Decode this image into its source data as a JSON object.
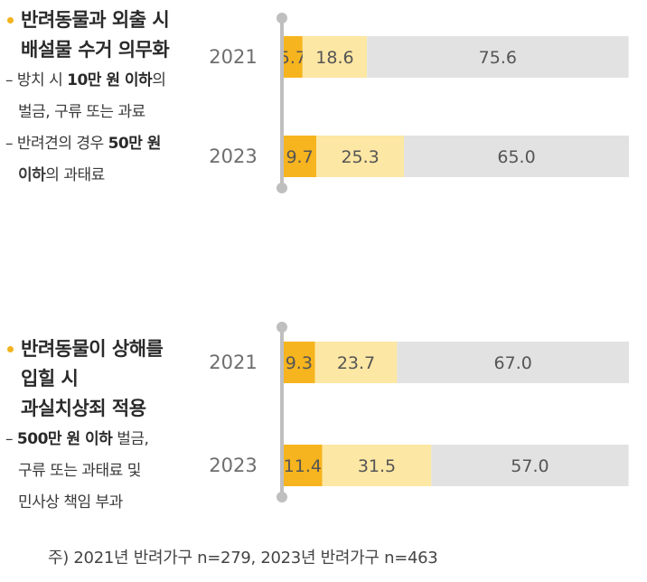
{
  "panels": [
    {
      "heading_lines": [
        "반려동물과 외출 시",
        "배설물 수거 의무화"
      ],
      "sub_lines": [
        {
          "dash": true,
          "parts": [
            {
              "t": "방치 시 ",
              "b": false
            },
            {
              "t": "10만 원 이하",
              "b": true
            },
            {
              "t": "의",
              "b": false
            }
          ]
        },
        {
          "dash": false,
          "parts": [
            {
              "t": "벌금, 구류 또는 과료",
              "b": false
            }
          ]
        },
        {
          "dash": true,
          "parts": [
            {
              "t": "반려견의 경우 ",
              "b": false
            },
            {
              "t": "50만 원",
              "b": true
            }
          ]
        },
        {
          "dash": false,
          "parts": [
            {
              "t": "이하",
              "b": true
            },
            {
              "t": "의 과태료",
              "b": false
            }
          ]
        }
      ]
    },
    {
      "heading_lines": [
        "반려동물이 상해를",
        "입힐 시",
        "과실치상죄 적용"
      ],
      "sub_lines": [
        {
          "dash": true,
          "parts": [
            {
              "t": "500만 원 이하",
              "b": true
            },
            {
              "t": " 벌금,",
              "b": false
            }
          ]
        },
        {
          "dash": false,
          "parts": [
            {
              "t": "구류 또는 과태료 및",
              "b": false
            }
          ]
        },
        {
          "dash": false,
          "parts": [
            {
              "t": "민사상 책임 부과",
              "b": false
            }
          ]
        }
      ]
    }
  ],
  "chart_data": [
    {
      "type": "bar",
      "orientation": "horizontal",
      "stacked": true,
      "percent_scale": true,
      "categories": [
        "2021",
        "2023"
      ],
      "series": [
        {
          "values": [
            5.7,
            9.7
          ],
          "color": "#f6b41e"
        },
        {
          "values": [
            18.6,
            25.3
          ],
          "color": "#fde7a4"
        },
        {
          "values": [
            75.6,
            65.0
          ],
          "color": "#e2e2e2"
        }
      ],
      "labels": [
        [
          "5.7",
          "18.6",
          "75.6"
        ],
        [
          "9.7",
          "25.3",
          "65.0"
        ]
      ]
    },
    {
      "type": "bar",
      "orientation": "horizontal",
      "stacked": true,
      "percent_scale": true,
      "categories": [
        "2021",
        "2023"
      ],
      "series": [
        {
          "values": [
            9.3,
            11.4
          ],
          "color": "#f6b41e"
        },
        {
          "values": [
            23.7,
            31.5
          ],
          "color": "#fde7a4"
        },
        {
          "values": [
            67.0,
            57.0
          ],
          "color": "#e2e2e2"
        }
      ],
      "labels": [
        [
          "9.3",
          "23.7",
          "67.0"
        ],
        [
          "11.4",
          "31.5",
          "57.0"
        ]
      ]
    }
  ],
  "colors": {
    "axis": "#bfbfbf",
    "bullet": "#f2b31f"
  },
  "footnote": "주) 2021년 반려가구 n=279, 2023년 반려가구 n=463"
}
